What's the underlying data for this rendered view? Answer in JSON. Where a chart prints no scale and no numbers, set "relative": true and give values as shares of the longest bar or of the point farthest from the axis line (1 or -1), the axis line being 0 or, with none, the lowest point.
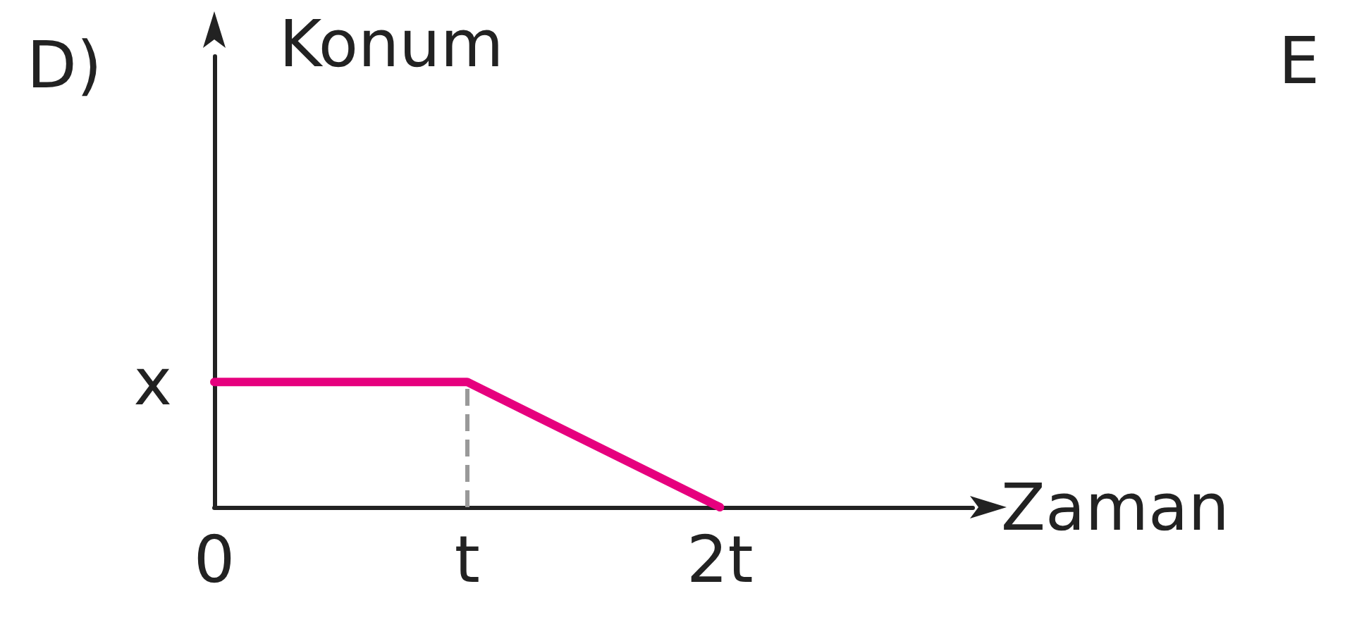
{
  "chart_data": {
    "type": "line",
    "title": "D)",
    "xlabel": "Zaman",
    "ylabel": "Konum",
    "relative": true,
    "annotations": [
      {
        "text": "x",
        "x": "0",
        "y": 1
      },
      "E"
    ],
    "categories": [
      "0",
      "t",
      "2t",
      null
    ],
    "series": [
      {
        "color": "#e6007e",
        "values": [
          1,
          1,
          0,
          null
        ]
      }
    ],
    "ref_lines": [
      {
        "axis": "x",
        "value": "t",
        "color": "#999999",
        "line_style": "dashed"
      }
    ],
    "grid": false,
    "marker": "none",
    "line_style": "solid"
  }
}
